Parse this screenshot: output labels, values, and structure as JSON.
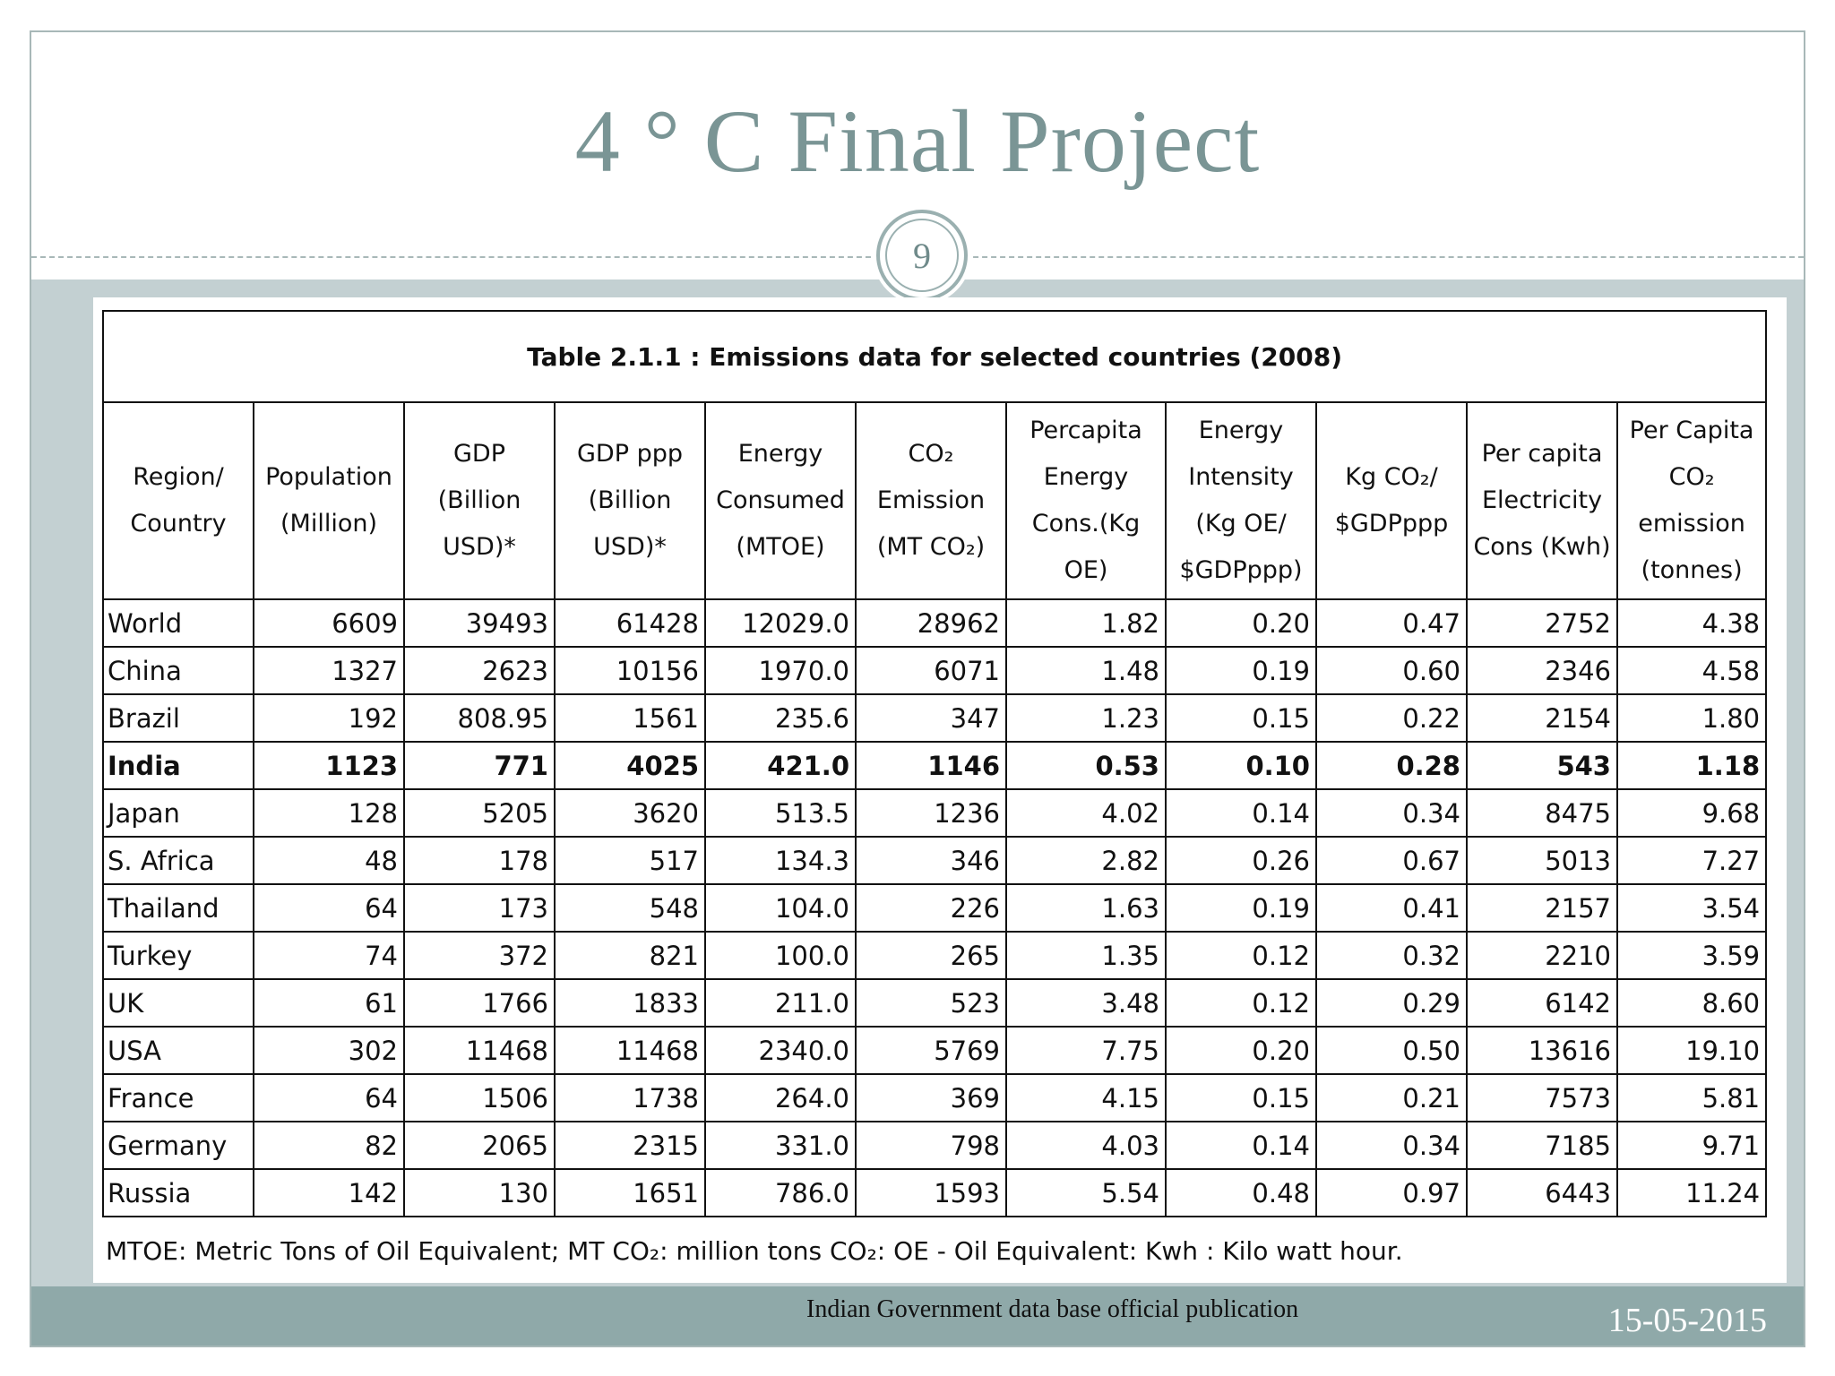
{
  "slide": {
    "title": "4 ° C  Final Project",
    "page_number": "9",
    "source_note": "Indian Government data base official publication",
    "date": "15-05-2015"
  },
  "table": {
    "caption": "Table 2.1.1 : Emissions data for selected countries (2008)",
    "headers": [
      "Region/ Country",
      "Population (Million)",
      "GDP (Billion USD)*",
      "GDP ppp (Billion USD)*",
      "Energy Consumed (MTOE)",
      "CO₂ Emission (MT CO₂)",
      "Percapita Energy Cons.(Kg OE)",
      "Energy Intensity (Kg OE/ $GDPppp)",
      "Kg CO₂/ $GDPppp",
      "Per capita Electricity Cons (Kwh)",
      "Per Capita CO₂ emission (tonnes)"
    ],
    "rows": [
      [
        "World",
        "6609",
        "39493",
        "61428",
        "12029.0",
        "28962",
        "1.82",
        "0.20",
        "0.47",
        "2752",
        "4.38"
      ],
      [
        "China",
        "1327",
        "2623",
        "10156",
        "1970.0",
        "6071",
        "1.48",
        "0.19",
        "0.60",
        "2346",
        "4.58"
      ],
      [
        "Brazil",
        "192",
        "808.95",
        "1561",
        "235.6",
        "347",
        "1.23",
        "0.15",
        "0.22",
        "2154",
        "1.80"
      ],
      [
        "India",
        "1123",
        "771",
        "4025",
        "421.0",
        "1146",
        "0.53",
        "0.10",
        "0.28",
        "543",
        "1.18"
      ],
      [
        "Japan",
        "128",
        "5205",
        "3620",
        "513.5",
        "1236",
        "4.02",
        "0.14",
        "0.34",
        "8475",
        "9.68"
      ],
      [
        "S. Africa",
        "48",
        "178",
        "517",
        "134.3",
        "346",
        "2.82",
        "0.26",
        "0.67",
        "5013",
        "7.27"
      ],
      [
        "Thailand",
        "64",
        "173",
        "548",
        "104.0",
        "226",
        "1.63",
        "0.19",
        "0.41",
        "2157",
        "3.54"
      ],
      [
        "Turkey",
        "74",
        "372",
        "821",
        "100.0",
        "265",
        "1.35",
        "0.12",
        "0.32",
        "2210",
        "3.59"
      ],
      [
        "UK",
        "61",
        "1766",
        "1833",
        "211.0",
        "523",
        "3.48",
        "0.12",
        "0.29",
        "6142",
        "8.60"
      ],
      [
        "USA",
        "302",
        "11468",
        "11468",
        "2340.0",
        "5769",
        "7.75",
        "0.20",
        "0.50",
        "13616",
        "19.10"
      ],
      [
        "France",
        "64",
        "1506",
        "1738",
        "264.0",
        "369",
        "4.15",
        "0.15",
        "0.21",
        "7573",
        "5.81"
      ],
      [
        "Germany",
        "82",
        "2065",
        "2315",
        "331.0",
        "798",
        "4.03",
        "0.14",
        "0.34",
        "7185",
        "9.71"
      ],
      [
        "Russia",
        "142",
        "130",
        "1651",
        "786.0",
        "1593",
        "5.54",
        "0.48",
        "0.97",
        "6443",
        "11.24"
      ]
    ],
    "highlight_row": "India",
    "footnote": "MTOE: Metric Tons of Oil Equivalent; MT CO₂: million tons CO₂: OE - Oil Equivalent: Kwh : Kilo watt hour."
  }
}
